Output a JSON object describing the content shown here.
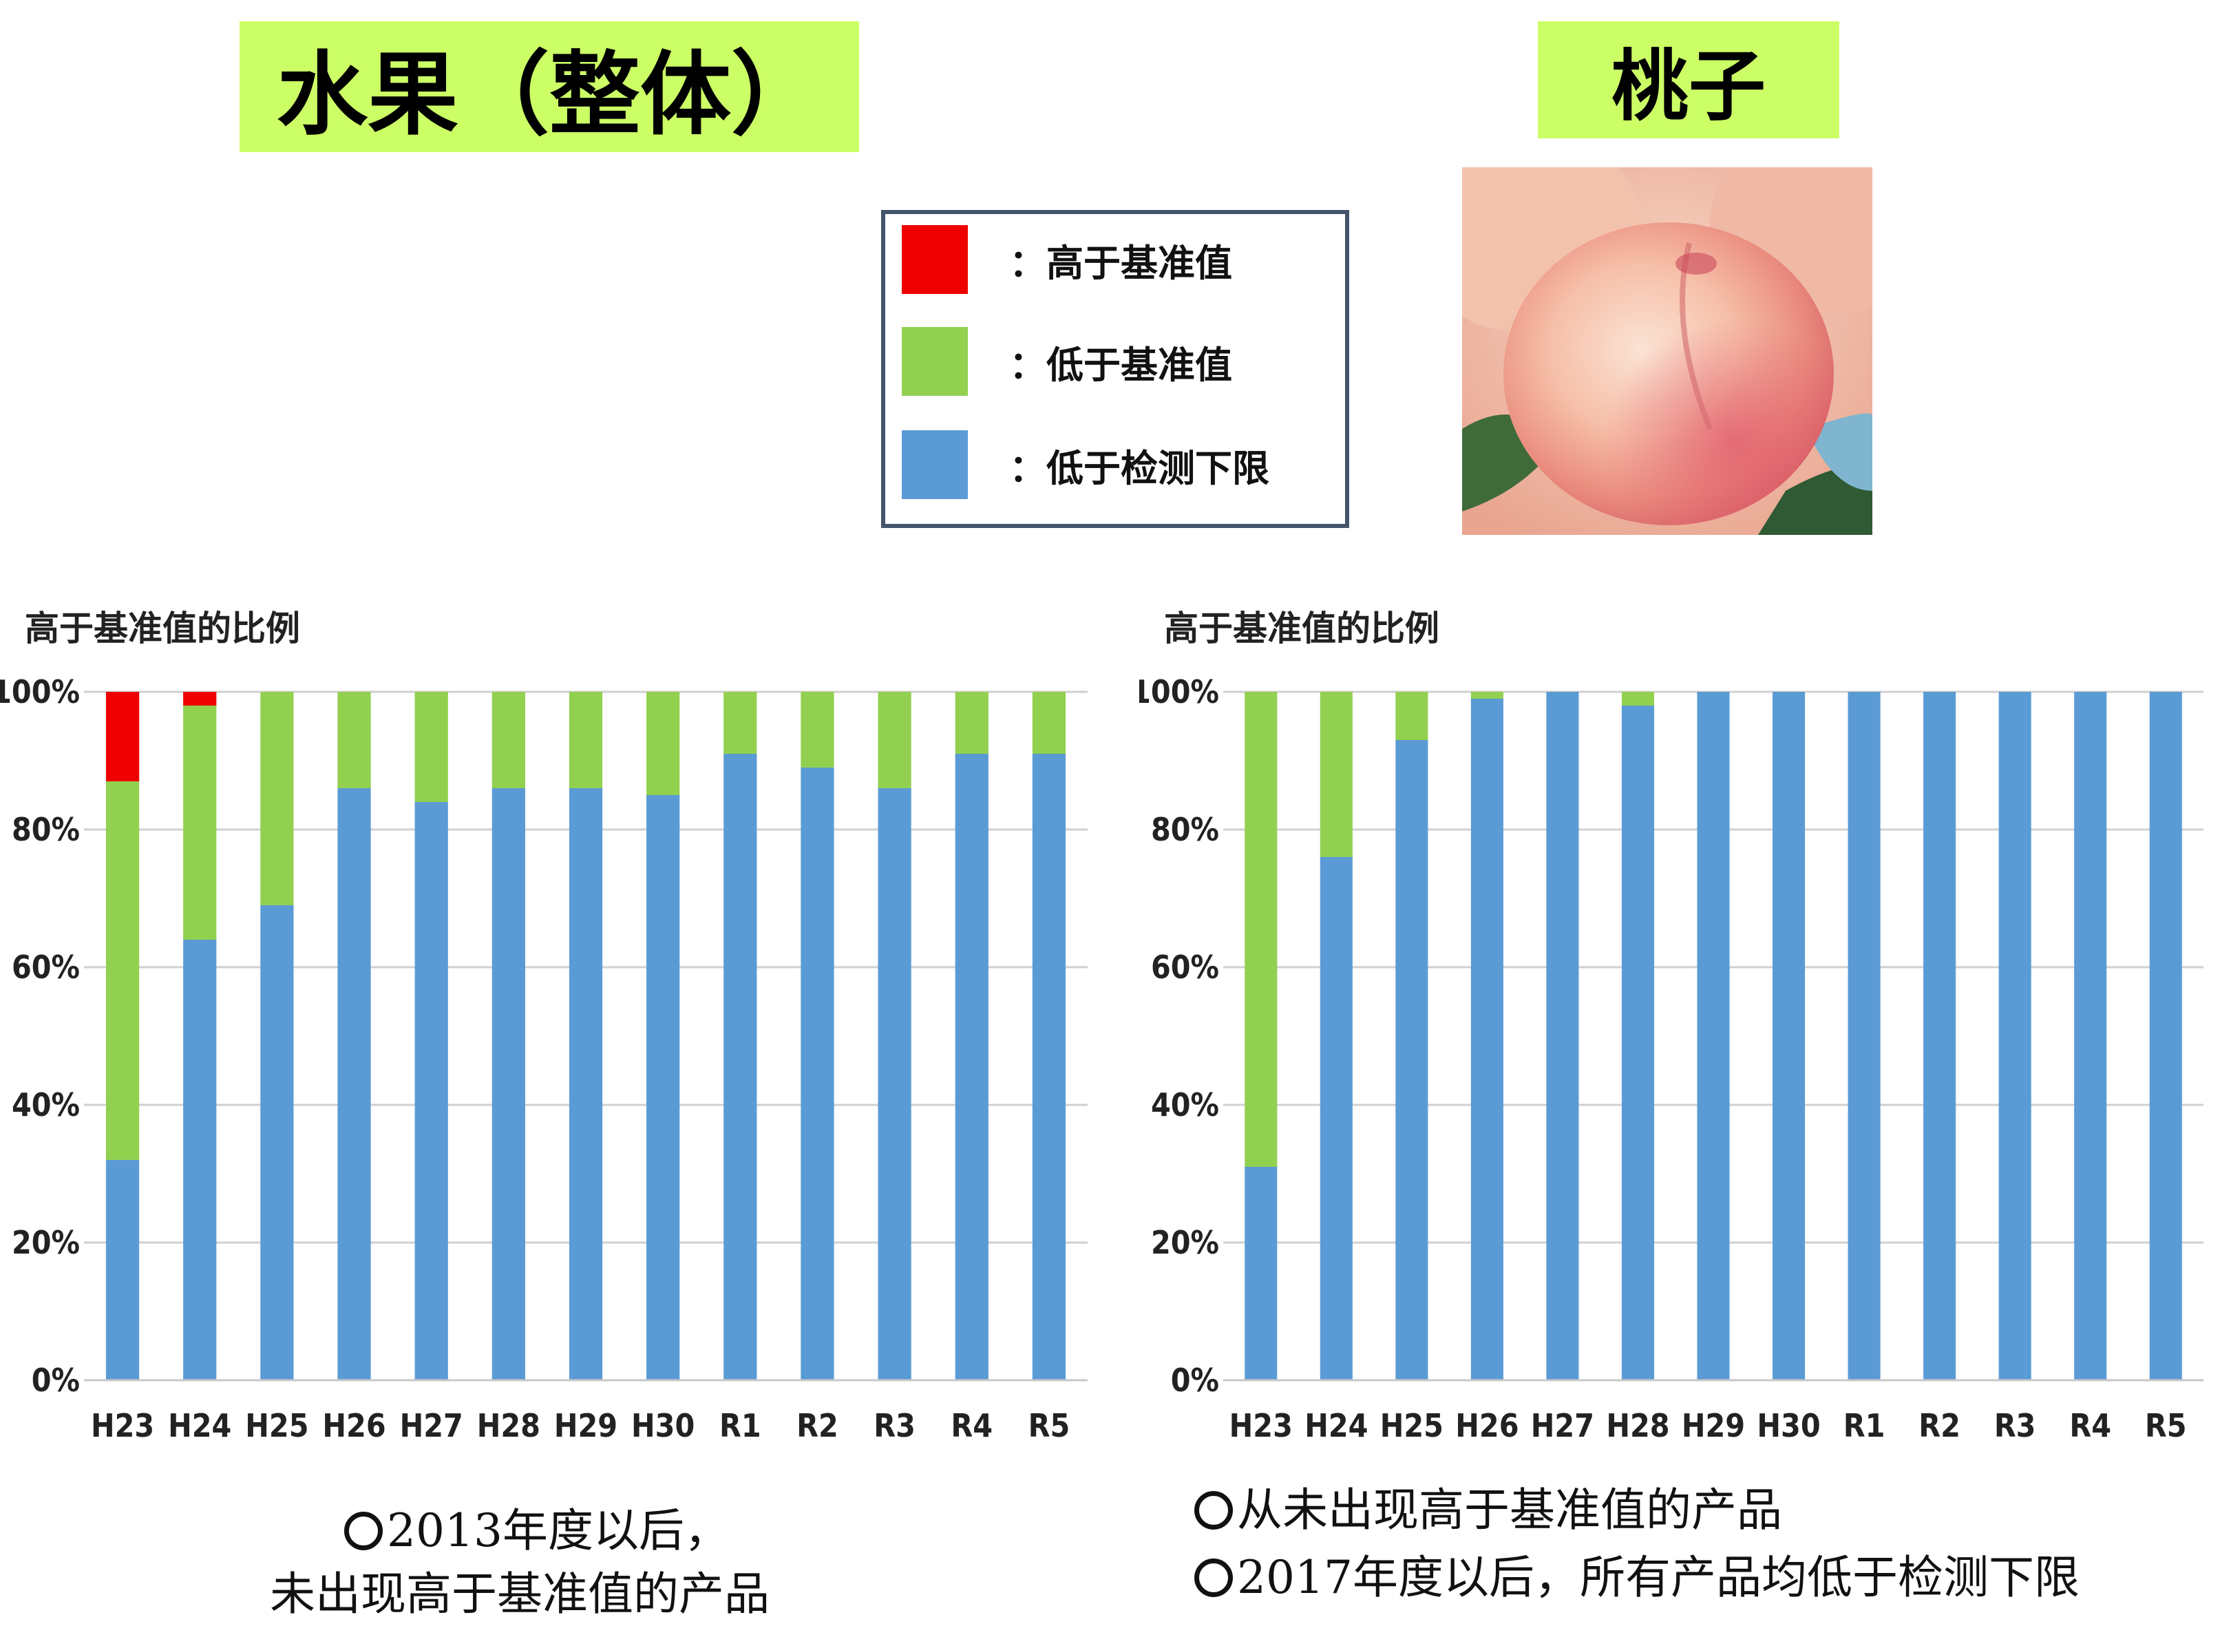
{
  "titles": {
    "left": "水果（整体）",
    "right": "桃子"
  },
  "legend": {
    "items": [
      {
        "label": "：高于基准值",
        "color": "#ee0000"
      },
      {
        "label": "：低于基准值",
        "color": "#92d050"
      },
      {
        "label": "：低于检测下限",
        "color": "#5b9bd5"
      }
    ]
  },
  "peach_image": {
    "icon": "peach-photo"
  },
  "notes": {
    "left": [
      "2013年度以后，",
      "未出现高于基准值的产品"
    ],
    "right": [
      "从未出现高于基准值的产品",
      "2017年度以后，所有产品均低于检测下限"
    ]
  },
  "chart_data": [
    {
      "type": "bar",
      "stacked": true,
      "title": "",
      "ylabel": "高于基准值的比例",
      "xlabel": "",
      "ylim": [
        0,
        100
      ],
      "yticks": [
        "0%",
        "20%",
        "40%",
        "60%",
        "80%",
        "100%"
      ],
      "grid": true,
      "categories": [
        "H23",
        "H24",
        "H25",
        "H26",
        "H27",
        "H28",
        "H29",
        "H30",
        "R1",
        "R2",
        "R3",
        "R4",
        "R5"
      ],
      "series": [
        {
          "color": "#5b9bd5",
          "values": [
            32,
            64,
            69,
            86,
            84,
            86,
            86,
            85,
            91,
            89,
            86,
            91,
            91
          ]
        },
        {
          "color": "#92d050",
          "values": [
            55,
            34,
            31,
            14,
            16,
            14,
            14,
            15,
            9,
            11,
            14,
            9,
            9
          ]
        },
        {
          "color": "#ee0000",
          "values": [
            13,
            2,
            0,
            0,
            0,
            0,
            0,
            0,
            0,
            0,
            0,
            0,
            0
          ]
        }
      ]
    },
    {
      "type": "bar",
      "stacked": true,
      "title": "",
      "ylabel": "高于基准值的比例",
      "xlabel": "",
      "ylim": [
        0,
        100
      ],
      "yticks": [
        "0%",
        "20%",
        "40%",
        "60%",
        "80%",
        "100%"
      ],
      "grid": true,
      "categories": [
        "H23",
        "H24",
        "H25",
        "H26",
        "H27",
        "H28",
        "H29",
        "H30",
        "R1",
        "R2",
        "R3",
        "R4",
        "R5"
      ],
      "series": [
        {
          "color": "#5b9bd5",
          "values": [
            31,
            76,
            93,
            99,
            100,
            98,
            100,
            100,
            100,
            100,
            100,
            100,
            100
          ]
        },
        {
          "color": "#92d050",
          "values": [
            69,
            24,
            7,
            1,
            0,
            2,
            0,
            0,
            0,
            0,
            0,
            0,
            0
          ]
        },
        {
          "color": "#ee0000",
          "values": [
            0,
            0,
            0,
            0,
            0,
            0,
            0,
            0,
            0,
            0,
            0,
            0,
            0
          ]
        }
      ]
    }
  ]
}
